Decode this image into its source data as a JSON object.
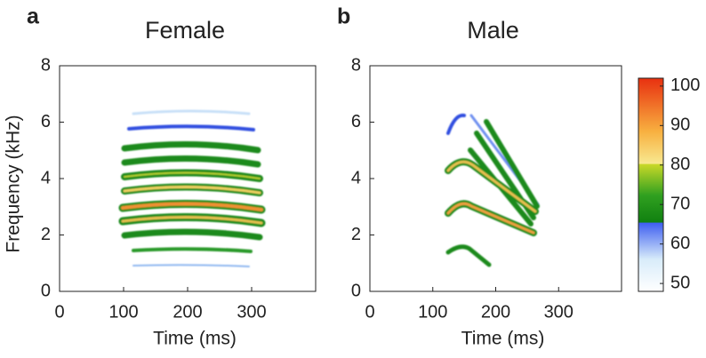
{
  "chart_data": [
    {
      "type": "spectrogram",
      "panel_label": "a",
      "title": "Female",
      "xlabel": "Time (ms)",
      "ylabel": "Frequency (kHz)",
      "xlim": [
        0,
        400
      ],
      "xticks": [
        0,
        100,
        200,
        300
      ],
      "ylim": [
        0,
        8
      ],
      "yticks": [
        0,
        2,
        4,
        6,
        8
      ]
    },
    {
      "type": "spectrogram",
      "panel_label": "b",
      "title": "Male",
      "xlabel": "Time (ms)",
      "xlim": [
        0,
        400
      ],
      "xticks": [
        0,
        100,
        200,
        300
      ],
      "ylim": [
        0,
        8
      ],
      "yticks": [
        0,
        2,
        4,
        6,
        8
      ],
      "colorbar": {
        "lim": [
          48,
          102
        ],
        "ticks": [
          50,
          60,
          70,
          80,
          90,
          100
        ]
      }
    }
  ]
}
